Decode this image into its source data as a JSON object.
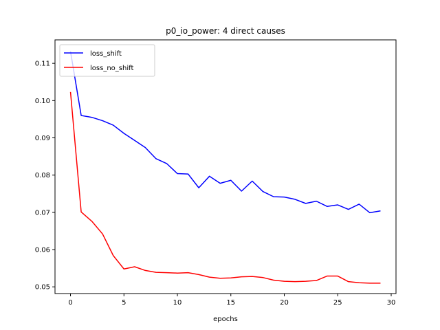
{
  "chart_data": {
    "type": "line",
    "title": "p0_io_power: 4 direct causes",
    "xlabel": "epochs",
    "ylabel": "",
    "xlim": [
      -1.45,
      30.45
    ],
    "ylim": [
      0.0482,
      0.1163
    ],
    "xticks": [
      0,
      5,
      10,
      15,
      20,
      25,
      30
    ],
    "xtick_labels": [
      "0",
      "5",
      "10",
      "15",
      "20",
      "25",
      "30"
    ],
    "yticks": [
      0.05,
      0.06,
      0.07,
      0.08,
      0.09,
      0.1,
      0.11
    ],
    "ytick_labels": [
      "0.05",
      "0.06",
      "0.07",
      "0.08",
      "0.09",
      "0.10",
      "0.11"
    ],
    "grid": false,
    "legend_position": "top-left",
    "x": [
      0,
      1,
      2,
      3,
      4,
      5,
      6,
      7,
      8,
      9,
      10,
      11,
      12,
      13,
      14,
      15,
      16,
      17,
      18,
      19,
      20,
      21,
      22,
      23,
      24,
      25,
      26,
      27,
      28,
      29
    ],
    "series": [
      {
        "name": "loss_shift",
        "color": "#0000ff",
        "values": [
          0.1132,
          0.096,
          0.0955,
          0.0946,
          0.0934,
          0.0912,
          0.0893,
          0.0874,
          0.0844,
          0.0831,
          0.0804,
          0.0803,
          0.0766,
          0.0797,
          0.0778,
          0.0786,
          0.0757,
          0.0784,
          0.0756,
          0.0742,
          0.0741,
          0.0735,
          0.0724,
          0.073,
          0.0716,
          0.072,
          0.0708,
          0.0722,
          0.0699,
          0.0704
        ]
      },
      {
        "name": "loss_no_shift",
        "color": "#ff0000",
        "values": [
          0.1023,
          0.0701,
          0.0676,
          0.0642,
          0.0584,
          0.0548,
          0.0554,
          0.0544,
          0.0539,
          0.0538,
          0.0537,
          0.0538,
          0.0533,
          0.0526,
          0.0523,
          0.0524,
          0.0527,
          0.0528,
          0.0525,
          0.0518,
          0.0515,
          0.0514,
          0.0515,
          0.0517,
          0.0529,
          0.0529,
          0.0514,
          0.0511,
          0.051,
          0.051
        ]
      }
    ]
  }
}
